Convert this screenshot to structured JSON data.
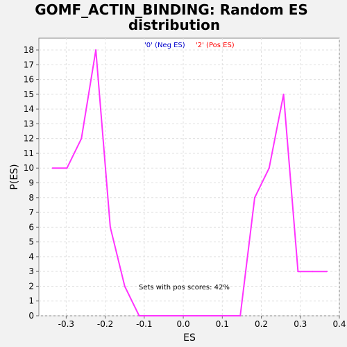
{
  "chart_data": {
    "type": "line",
    "title_line1": "GOMF_ACTIN_BINDING: Random ES",
    "title_line2": "distribution",
    "xlabel": "ES",
    "ylabel": "P(ES)",
    "xlim": [
      -0.37,
      0.4
    ],
    "ylim": [
      0,
      18.8
    ],
    "x_ticks": [
      -0.3,
      -0.2,
      -0.1,
      0.0,
      0.1,
      0.2,
      0.3,
      0.4
    ],
    "x_tick_labels": [
      "-0.3",
      "-0.2",
      "-0.1",
      "0.0",
      "0.1",
      "0.2",
      "0.3",
      "0.4"
    ],
    "y_ticks": [
      0,
      1,
      2,
      3,
      4,
      5,
      6,
      7,
      8,
      9,
      10,
      11,
      12,
      13,
      14,
      15,
      16,
      17,
      18
    ],
    "grid": true,
    "legend": [
      {
        "label": "'0' (Neg ES)",
        "color": "#0000cc"
      },
      {
        "label": "'2' (Pos ES)",
        "color": "#ff0000"
      }
    ],
    "annotation": "Sets with pos scores: 42%",
    "series": [
      {
        "color": "#ff33ff",
        "x": [
          -0.335,
          -0.298,
          -0.261,
          -0.224,
          -0.187,
          -0.15,
          -0.113,
          -0.076,
          -0.039,
          -0.002,
          0.035,
          0.072,
          0.109,
          0.146,
          0.183,
          0.22,
          0.257,
          0.294,
          0.331,
          0.368
        ],
        "y": [
          10,
          10,
          12,
          18,
          6,
          2,
          0,
          0,
          0,
          0,
          0,
          0,
          0,
          0,
          8,
          10,
          15,
          3,
          3,
          3
        ]
      }
    ]
  }
}
